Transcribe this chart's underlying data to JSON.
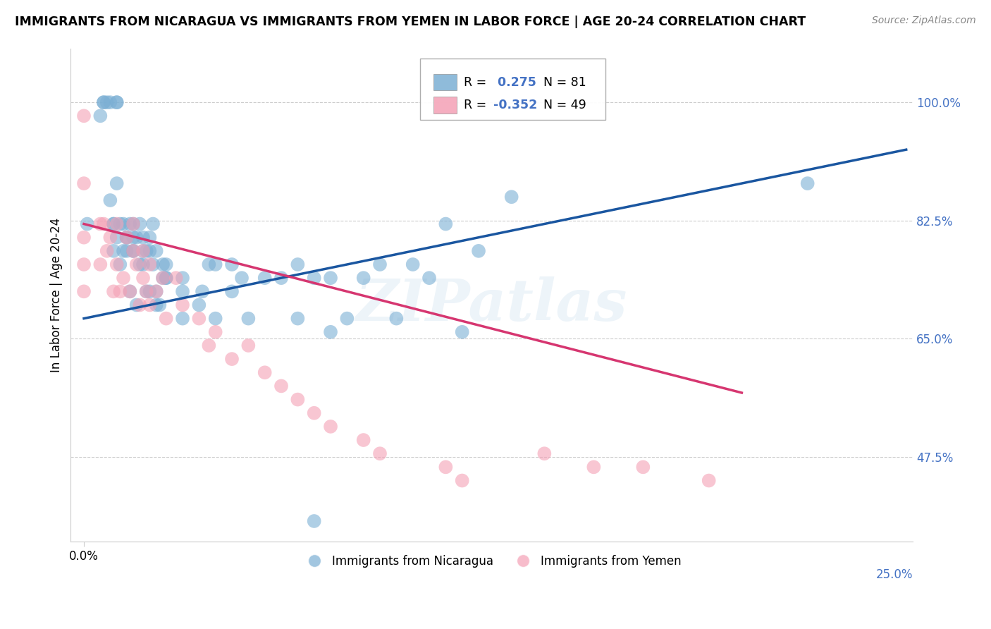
{
  "title": "IMMIGRANTS FROM NICARAGUA VS IMMIGRANTS FROM YEMEN IN LABOR FORCE | AGE 20-24 CORRELATION CHART",
  "source": "Source: ZipAtlas.com",
  "ylabel": "In Labor Force | Age 20-24",
  "xlim": [
    0.0,
    0.25
  ],
  "ylim": [
    0.35,
    1.08
  ],
  "ytick_vals": [
    0.475,
    0.65,
    0.825,
    1.0
  ],
  "ytick_labels": [
    "47.5%",
    "65.0%",
    "82.5%",
    "100.0%"
  ],
  "blue_color": "#7BAFD4",
  "pink_color": "#F4A0B5",
  "blue_line_color": "#1A56A0",
  "pink_line_color": "#D63670",
  "legend_blue_R": "0.275",
  "legend_blue_N": "81",
  "legend_pink_R": "-0.352",
  "legend_pink_N": "49",
  "watermark": "ZIPatlas",
  "blue_line_x0": 0.0,
  "blue_line_y0": 0.68,
  "blue_line_x1": 0.25,
  "blue_line_y1": 0.93,
  "pink_line_x0": 0.0,
  "pink_line_y0": 0.82,
  "pink_line_x1": 0.2,
  "pink_line_y1": 0.57,
  "nicaragua_x": [
    0.001,
    0.005,
    0.006,
    0.006,
    0.007,
    0.008,
    0.008,
    0.009,
    0.009,
    0.009,
    0.01,
    0.01,
    0.01,
    0.01,
    0.011,
    0.011,
    0.012,
    0.012,
    0.013,
    0.013,
    0.013,
    0.014,
    0.014,
    0.015,
    0.015,
    0.015,
    0.015,
    0.016,
    0.016,
    0.017,
    0.017,
    0.018,
    0.018,
    0.018,
    0.019,
    0.019,
    0.02,
    0.02,
    0.02,
    0.021,
    0.021,
    0.022,
    0.022,
    0.022,
    0.023,
    0.024,
    0.024,
    0.025,
    0.025,
    0.025,
    0.03,
    0.03,
    0.03,
    0.035,
    0.036,
    0.038,
    0.04,
    0.04,
    0.045,
    0.045,
    0.048,
    0.05,
    0.055,
    0.06,
    0.065,
    0.065,
    0.07,
    0.07,
    0.075,
    0.075,
    0.08,
    0.085,
    0.09,
    0.095,
    0.1,
    0.105,
    0.11,
    0.115,
    0.12,
    0.13,
    0.22
  ],
  "nicaragua_y": [
    0.82,
    0.98,
    1.0,
    1.0,
    1.0,
    0.855,
    1.0,
    0.78,
    0.82,
    0.82,
    0.88,
    0.8,
    1.0,
    1.0,
    0.82,
    0.76,
    0.82,
    0.78,
    0.8,
    0.8,
    0.78,
    0.72,
    0.82,
    0.78,
    0.82,
    0.78,
    0.8,
    0.7,
    0.8,
    0.82,
    0.76,
    0.78,
    0.76,
    0.8,
    0.72,
    0.78,
    0.8,
    0.72,
    0.78,
    0.82,
    0.76,
    0.7,
    0.78,
    0.72,
    0.7,
    0.74,
    0.76,
    0.74,
    0.76,
    0.74,
    0.74,
    0.72,
    0.68,
    0.7,
    0.72,
    0.76,
    0.68,
    0.76,
    0.72,
    0.76,
    0.74,
    0.68,
    0.74,
    0.74,
    0.68,
    0.76,
    0.74,
    0.38,
    0.74,
    0.66,
    0.68,
    0.74,
    0.76,
    0.68,
    0.76,
    0.74,
    0.82,
    0.66,
    0.78,
    0.86,
    0.88
  ],
  "yemen_x": [
    0.0,
    0.0,
    0.0,
    0.0,
    0.0,
    0.005,
    0.005,
    0.006,
    0.007,
    0.008,
    0.009,
    0.01,
    0.01,
    0.011,
    0.012,
    0.013,
    0.014,
    0.015,
    0.015,
    0.016,
    0.017,
    0.018,
    0.018,
    0.019,
    0.02,
    0.02,
    0.022,
    0.024,
    0.025,
    0.028,
    0.03,
    0.035,
    0.038,
    0.04,
    0.045,
    0.05,
    0.055,
    0.06,
    0.065,
    0.07,
    0.075,
    0.085,
    0.09,
    0.11,
    0.115,
    0.14,
    0.155,
    0.17,
    0.19
  ],
  "yemen_y": [
    0.98,
    0.88,
    0.8,
    0.76,
    0.72,
    0.82,
    0.76,
    0.82,
    0.78,
    0.8,
    0.72,
    0.82,
    0.76,
    0.72,
    0.74,
    0.8,
    0.72,
    0.78,
    0.82,
    0.76,
    0.7,
    0.78,
    0.74,
    0.72,
    0.7,
    0.76,
    0.72,
    0.74,
    0.68,
    0.74,
    0.7,
    0.68,
    0.64,
    0.66,
    0.62,
    0.64,
    0.6,
    0.58,
    0.56,
    0.54,
    0.52,
    0.5,
    0.48,
    0.46,
    0.44,
    0.48,
    0.46,
    0.46,
    0.44
  ]
}
